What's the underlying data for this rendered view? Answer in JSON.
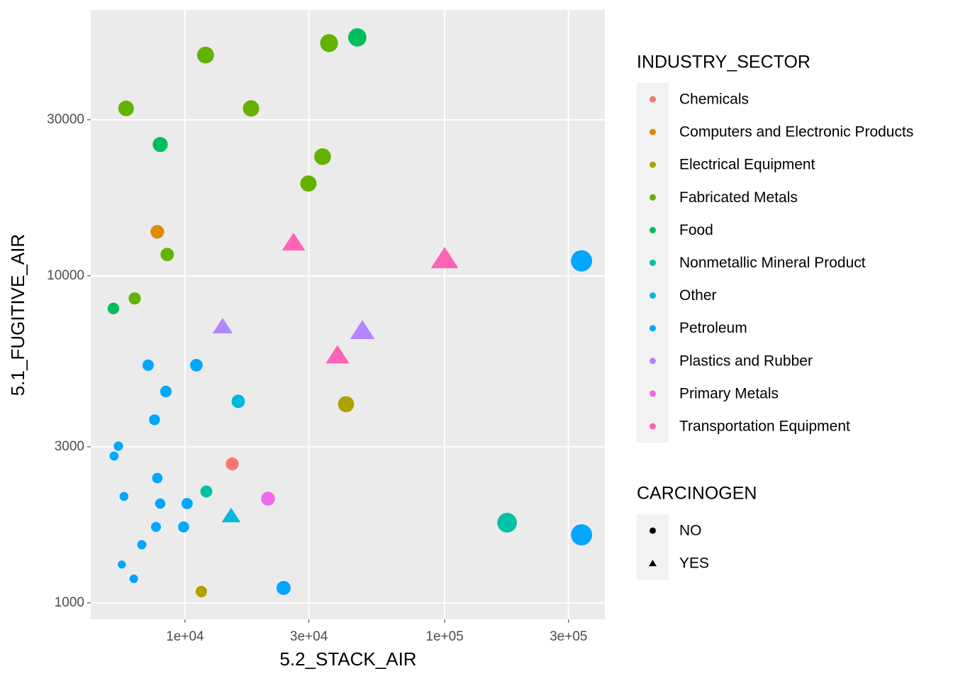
{
  "chart_data": {
    "type": "scatter",
    "log_x": true,
    "log_y": true,
    "grid": true,
    "x_label": "5.2_STACK_AIR",
    "y_label": "5.1_FUGITIVE_AIR",
    "xlim": [
      4335,
      414000
    ],
    "ylim": [
      891,
      65000
    ],
    "xticks": [
      {
        "value": 10000,
        "label": "1e+04"
      },
      {
        "value": 30000,
        "label": "3e+04"
      },
      {
        "value": 100000,
        "label": "1e+05"
      },
      {
        "value": 300000,
        "label": "3e+05"
      }
    ],
    "yticks": [
      1000,
      3000,
      10000,
      30000
    ],
    "legend_title": "INDUSTRY_SECTOR",
    "shape_legend": {
      "title": "CARCINOGEN",
      "levels": [
        "NO",
        "YES"
      ],
      "shapes": [
        "circle",
        "triangle"
      ]
    },
    "series": [
      {
        "name": "Chemicals",
        "color": "#F8766D",
        "x": [
          15200
        ],
        "y": [
          2660
        ],
        "carcinogen": [
          "NO"
        ]
      },
      {
        "name": "Computers and Electronic Products",
        "color": "#DB8E00",
        "x": [
          7820
        ],
        "y": [
          13630
        ],
        "carcinogen": [
          "NO"
        ]
      },
      {
        "name": "Electrical Equipment",
        "color": "#AEA200",
        "x": [
          41700,
          11560
        ],
        "y": [
          4050,
          1083
        ],
        "carcinogen": [
          "NO",
          "NO"
        ]
      },
      {
        "name": "Fabricated Metals",
        "color": "#64B200",
        "x": [
          12000,
          35880,
          5930,
          17960,
          33880,
          29870,
          8540,
          6400
        ],
        "y": [
          47300,
          51450,
          32500,
          32500,
          23140,
          19150,
          11620,
          8530
        ],
        "carcinogen": [
          "NO",
          "NO",
          "NO",
          "NO",
          "NO",
          "NO",
          "NO",
          "NO"
        ]
      },
      {
        "name": "Food",
        "color": "#00BD5C",
        "x": [
          46100,
          8025,
          5300
        ],
        "y": [
          53580,
          25200,
          7945
        ],
        "carcinogen": [
          "NO",
          "NO",
          "NO"
        ]
      },
      {
        "name": "Nonmetallic Mineral Product",
        "color": "#00C1A7",
        "x": [
          174000,
          12080
        ],
        "y": [
          1758,
          2191
        ],
        "carcinogen": [
          "NO",
          "NO"
        ]
      },
      {
        "name": "Other",
        "color": "#00BADE",
        "x": [
          16030,
          15050
        ],
        "y": [
          4131,
          1840
        ],
        "carcinogen": [
          "NO",
          "YES"
        ]
      },
      {
        "name": "Petroleum",
        "color": "#00A6FF",
        "x": [
          336700,
          336700,
          23970,
          11060,
          7210,
          8440,
          7630,
          5537,
          5330,
          7820,
          5820,
          8025,
          10190,
          7730,
          9875,
          6815,
          5710,
          6350
        ],
        "y": [
          11110,
          1615,
          1111,
          5330,
          5330,
          4430,
          3630,
          3016,
          2812,
          2408,
          2116,
          2012,
          2012,
          1707,
          1707,
          1506,
          1310,
          1185
        ],
        "carcinogen": [
          "NO",
          "NO",
          "NO",
          "NO",
          "NO",
          "NO",
          "NO",
          "NO",
          "NO",
          "NO",
          "NO",
          "NO",
          "NO",
          "NO",
          "NO",
          "NO",
          "NO",
          "NO"
        ]
      },
      {
        "name": "Plastics and Rubber",
        "color": "#B385FF",
        "x": [
          13960,
          48200
        ],
        "y": [
          6980,
          6770
        ],
        "carcinogen": [
          "YES",
          "YES"
        ]
      },
      {
        "name": "Primary Metals",
        "color": "#EF67EB",
        "x": [
          20880
        ],
        "y": [
          2083
        ],
        "carcinogen": [
          "NO"
        ]
      },
      {
        "name": "Transportation Equipment",
        "color": "#FF63B6",
        "x": [
          26180,
          100000,
          38660
        ],
        "y": [
          12590,
          11220,
          5690
        ],
        "carcinogen": [
          "YES",
          "YES",
          "YES"
        ]
      }
    ]
  }
}
